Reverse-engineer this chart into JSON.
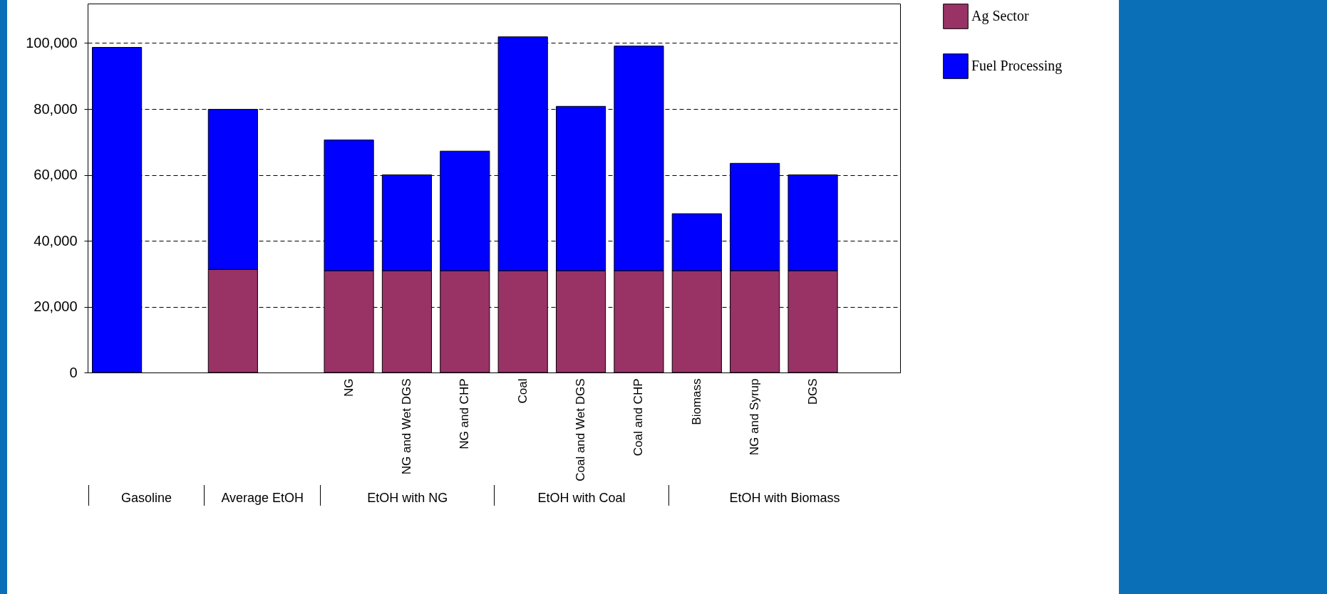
{
  "chart_data": {
    "type": "bar",
    "stacked": true,
    "categories": [
      null,
      null,
      null,
      null,
      "NG",
      "NG and Wet DGS",
      "NG and CHP",
      "Coal",
      "Coal and Wet DGS",
      "Coal and CHP",
      "Biomass",
      "NG and Syrup",
      "DGS",
      null
    ],
    "series": [
      {
        "name": "Ag Sector",
        "color": "#993366",
        "values": [
          null,
          null,
          31300,
          null,
          30900,
          30900,
          30900,
          30900,
          30900,
          30900,
          30900,
          30900,
          30900,
          null
        ]
      },
      {
        "name": "Fuel Processing",
        "color": "#0000ff",
        "values": [
          98700,
          null,
          48600,
          null,
          39700,
          29100,
          36300,
          71000,
          49900,
          68200,
          17300,
          32600,
          29100,
          null
        ]
      }
    ],
    "ylim": [
      0,
      112000
    ],
    "yticks": [
      0,
      {
        "value": 20000,
        "label": "20,000"
      },
      {
        "value": 40000,
        "label": "40,000"
      },
      {
        "value": 60000,
        "label": "60,000"
      },
      {
        "value": 80000,
        "label": "80,000"
      },
      {
        "value": 100000,
        "label": "100,000"
      }
    ],
    "grid": "y",
    "legend": "right",
    "annotations": [
      "Gasoline",
      "Average EtOH",
      "EtOH with NG",
      "EtOH with Coal",
      "EtOH with Biomass"
    ]
  }
}
